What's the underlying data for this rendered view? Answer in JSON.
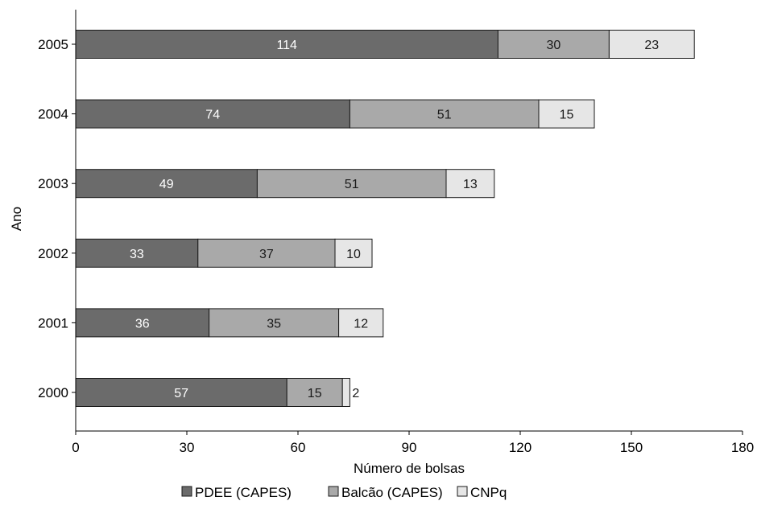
{
  "chart_data": {
    "type": "bar",
    "orientation": "horizontal",
    "stacked": true,
    "categories": [
      "2005",
      "2004",
      "2003",
      "2002",
      "2001",
      "2000"
    ],
    "series": [
      {
        "name": "PDEE (CAPES)",
        "color": "#6b6b6b",
        "label_color": "#ffffff",
        "values": [
          114,
          74,
          49,
          33,
          36,
          57
        ]
      },
      {
        "name": "Balcão (CAPES)",
        "color": "#a9a9a9",
        "label_color": "#1a1a1a",
        "values": [
          30,
          51,
          51,
          37,
          35,
          15
        ]
      },
      {
        "name": "CNPq",
        "color": "#e6e6e6",
        "label_color": "#1a1a1a",
        "values": [
          23,
          15,
          13,
          10,
          12,
          2
        ]
      }
    ],
    "xlabel": "Número de bolsas",
    "ylabel": "Ano",
    "xlim": [
      0,
      180
    ],
    "xticks": [
      0,
      30,
      60,
      90,
      120,
      150,
      180
    ],
    "grid": false,
    "legend_position": "bottom"
  }
}
